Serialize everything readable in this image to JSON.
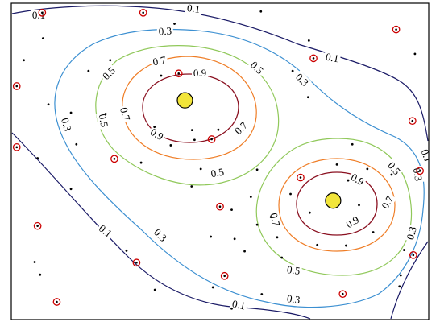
{
  "chart_data": {
    "type": "contour",
    "title": "",
    "xlabel": "",
    "ylabel": "",
    "xlim": [
      0,
      1
    ],
    "ylim": [
      0,
      1
    ],
    "grid": false,
    "colors": {
      "frame": "#000000",
      "peak_fill": "#f2e53a",
      "peak_edge": "#000000",
      "red_marker": "#cc0000",
      "black_marker": "#000000"
    },
    "contours": [
      {
        "level": 0.1,
        "labels": [
          "0.1",
          "0.1",
          "0.1",
          "0.1",
          "0.1",
          "0.1"
        ],
        "color": "#1a1a66"
      },
      {
        "level": 0.3,
        "labels": [
          "0.3",
          "0.3",
          "0.3",
          "0.3",
          "0.3",
          "0.3",
          "0.3"
        ],
        "color": "#3b8fd1"
      },
      {
        "level": 0.5,
        "labels": [
          "0.5",
          "0.5",
          "0.5",
          "0.5",
          "0.5",
          "0.5"
        ],
        "color": "#90c85a"
      },
      {
        "level": 0.7,
        "labels": [
          "0.7",
          "0.7",
          "0.7",
          "0.7",
          "0.7"
        ],
        "color": "#ef7d26"
      },
      {
        "level": 0.9,
        "labels": [
          "0.9",
          "0.9",
          "0.9",
          "0.9"
        ],
        "color": "#8a1020"
      }
    ],
    "peaks": [
      {
        "x": 0.416,
        "y": 0.693
      },
      {
        "x": 0.771,
        "y": 0.376
      }
    ],
    "red_markers": [
      {
        "x": 0.074,
        "y": 0.97
      },
      {
        "x": 0.316,
        "y": 0.97
      },
      {
        "x": 0.922,
        "y": 0.917
      },
      {
        "x": 0.724,
        "y": 0.826
      },
      {
        "x": 0.401,
        "y": 0.778
      },
      {
        "x": 0.013,
        "y": 0.738
      },
      {
        "x": 0.961,
        "y": 0.628
      },
      {
        "x": 0.48,
        "y": 0.57
      },
      {
        "x": 0.013,
        "y": 0.545
      },
      {
        "x": 0.247,
        "y": 0.508
      },
      {
        "x": 0.979,
        "y": 0.47
      },
      {
        "x": 0.693,
        "y": 0.449
      },
      {
        "x": 0.5,
        "y": 0.357
      },
      {
        "x": 0.063,
        "y": 0.296
      },
      {
        "x": 0.963,
        "y": 0.204
      },
      {
        "x": 0.3,
        "y": 0.18
      },
      {
        "x": 0.511,
        "y": 0.138
      },
      {
        "x": 0.794,
        "y": 0.081
      },
      {
        "x": 0.109,
        "y": 0.056
      }
    ],
    "black_markers": [
      {
        "x": 0.598,
        "y": 0.974
      },
      {
        "x": 0.391,
        "y": 0.935
      },
      {
        "x": 0.076,
        "y": 0.889
      },
      {
        "x": 0.713,
        "y": 0.882
      },
      {
        "x": 0.03,
        "y": 0.82
      },
      {
        "x": 0.185,
        "y": 0.786
      },
      {
        "x": 0.359,
        "y": 0.771
      },
      {
        "x": 0.674,
        "y": 0.786
      },
      {
        "x": 0.089,
        "y": 0.68
      },
      {
        "x": 0.226,
        "y": 0.65
      },
      {
        "x": 0.143,
        "y": 0.654
      },
      {
        "x": 0.343,
        "y": 0.609
      },
      {
        "x": 0.433,
        "y": 0.599
      },
      {
        "x": 0.496,
        "y": 0.6
      },
      {
        "x": 0.382,
        "y": 0.551
      },
      {
        "x": 0.439,
        "y": 0.568
      },
      {
        "x": 0.156,
        "y": 0.554
      },
      {
        "x": 0.311,
        "y": 0.496
      },
      {
        "x": 0.063,
        "y": 0.51
      },
      {
        "x": 0.454,
        "y": 0.476
      },
      {
        "x": 0.78,
        "y": 0.49
      },
      {
        "x": 0.853,
        "y": 0.476
      },
      {
        "x": 0.589,
        "y": 0.474
      },
      {
        "x": 0.911,
        "y": 0.458
      },
      {
        "x": 0.807,
        "y": 0.44
      },
      {
        "x": 0.432,
        "y": 0.421
      },
      {
        "x": 0.669,
        "y": 0.397
      },
      {
        "x": 0.143,
        "y": 0.413
      },
      {
        "x": 0.574,
        "y": 0.388
      },
      {
        "x": 0.528,
        "y": 0.347
      },
      {
        "x": 0.833,
        "y": 0.362
      },
      {
        "x": 0.622,
        "y": 0.324
      },
      {
        "x": 0.715,
        "y": 0.338
      },
      {
        "x": 0.589,
        "y": 0.3
      },
      {
        "x": 0.867,
        "y": 0.276
      },
      {
        "x": 0.535,
        "y": 0.255
      },
      {
        "x": 0.637,
        "y": 0.26
      },
      {
        "x": 0.733,
        "y": 0.236
      },
      {
        "x": 0.802,
        "y": 0.234
      },
      {
        "x": 0.559,
        "y": 0.216
      },
      {
        "x": 0.941,
        "y": 0.22
      },
      {
        "x": 0.056,
        "y": 0.182
      },
      {
        "x": 0.069,
        "y": 0.142
      },
      {
        "x": 0.276,
        "y": 0.218
      },
      {
        "x": 0.483,
        "y": 0.102
      },
      {
        "x": 0.93,
        "y": 0.105
      },
      {
        "x": 0.933,
        "y": 0.14
      },
      {
        "x": 0.6,
        "y": 0.08
      },
      {
        "x": 0.344,
        "y": 0.094
      },
      {
        "x": 0.528,
        "y": 0.035
      },
      {
        "x": 0.967,
        "y": 0.84
      },
      {
        "x": 0.711,
        "y": 0.703
      },
      {
        "x": 0.237,
        "y": 0.82
      },
      {
        "x": 0.817,
        "y": 0.554
      },
      {
        "x": 0.478,
        "y": 0.262
      },
      {
        "x": 0.648,
        "y": 0.196
      }
    ]
  }
}
